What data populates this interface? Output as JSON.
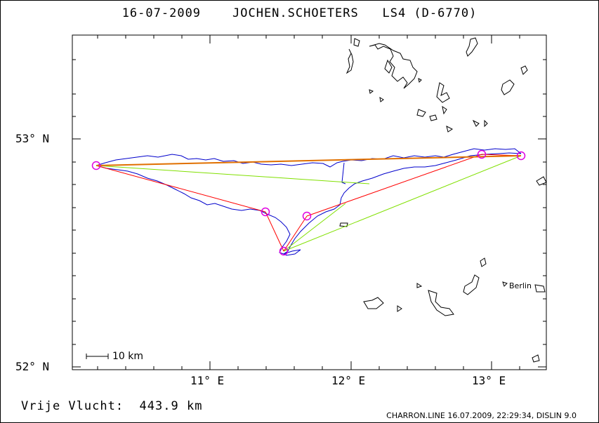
{
  "header": {
    "date": "16-07-2009",
    "pilot": "JOCHEN.SCHOETERS",
    "glider": "LS4 (D-6770)"
  },
  "map": {
    "lat_labels": [
      "53° N",
      "52° N"
    ],
    "lon_labels": [
      "11° E",
      "12° E",
      "13° E"
    ],
    "scale_label": "10 km",
    "city": "Berlin",
    "colors": {
      "track": "#0000cc",
      "legs": "#ff0000",
      "alt_legs": "#80e000",
      "turnpoints": "#e000e0",
      "orange_leg": "#e07000"
    }
  },
  "footer": {
    "flight_type": "Vrije Vlucht:",
    "distance": "443.9 km",
    "software": "CHARRON.LINE 16.07.2009, 22:29:34, DISLIN 9.0"
  }
}
